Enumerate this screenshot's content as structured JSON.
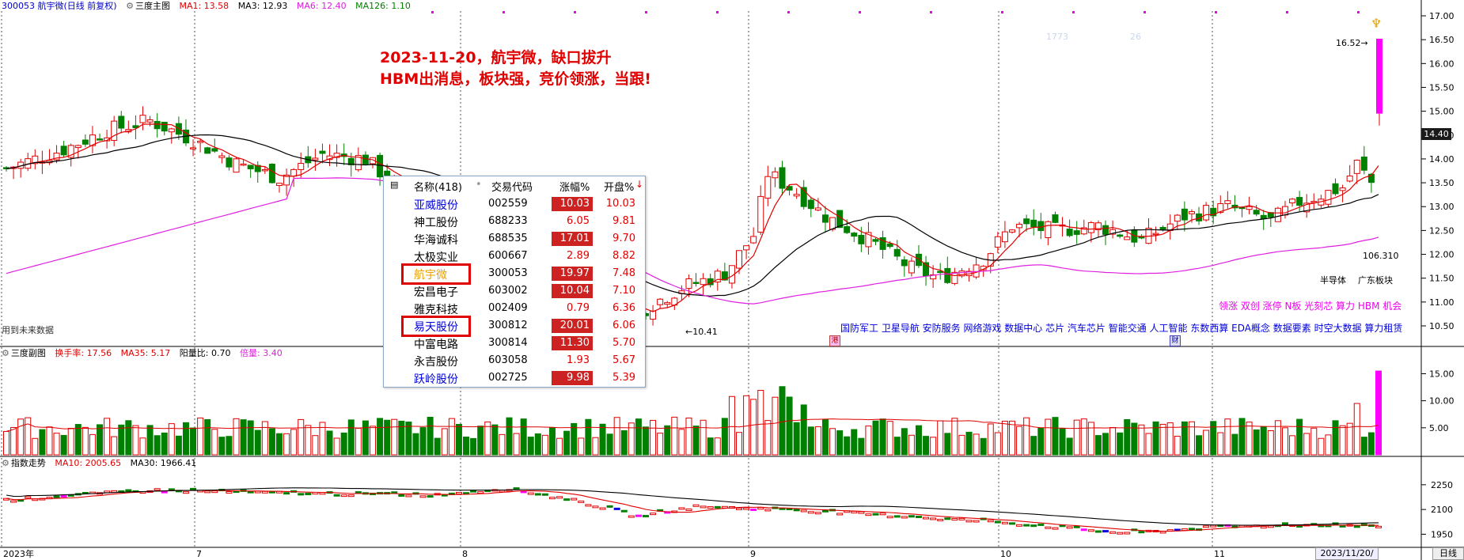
{
  "main_header": {
    "code_name": "300053 航宇微",
    "period_label": "(日线 前复权)",
    "indicator_name": "三度主图",
    "ma1": "MA1: 13.58",
    "ma3": "MA3: 12.93",
    "ma6": "MA6: 12.40",
    "ma126": "MA126: 1.10"
  },
  "sub_header": {
    "name": "三度副图",
    "turnover": "换手率: 17.56",
    "ma35": "MA35: 5.17",
    "yinyang": "阳量比: 0.70",
    "beiliang": "倍量: 3.40"
  },
  "index_header": {
    "name": "指数走势",
    "ma10": "MA10: 2005.65",
    "ma30": "MA30: 1966.41"
  },
  "annotation": {
    "line1": "2023-11-20，航宇微，缺口拔升",
    "line2": "HBM出消息，板块强，竞价领涨，当跟!"
  },
  "labels": {
    "future_data": "用到未来数据",
    "low_price": "10.41",
    "high_price": "16.52",
    "volume_price": "106.310",
    "sector": "半导体",
    "board": "广东板块",
    "faint1": "1773",
    "faint2": "26",
    "concepts_magenta": "领涨 双创 涨停 N板 光刻芯 算力 HBM 机会",
    "concepts_blue": "国防军工 卫星导航 安防服务 网络游戏 数据中心 芯片 汽车芯片 智能交通 人工智能 东数西算 EDA概念 数据要素 时空大数据 算力租赁",
    "period_tab": "日线",
    "current_date": "2023/11/20/一"
  },
  "price_axis": [
    "17.00",
    "16.50",
    "16.00",
    "15.50",
    "15.00",
    "14.50",
    "14.00",
    "13.50",
    "13.00",
    "12.50",
    "12.00",
    "11.50",
    "11.00",
    "10.50"
  ],
  "current_price_tag": "14.40",
  "vol_axis": [
    "15.00",
    "10.00",
    "5.00"
  ],
  "index_axis": [
    "2250",
    "2100",
    "1950"
  ],
  "time_axis": [
    "2023年",
    "7",
    "8",
    "9",
    "10",
    "11"
  ],
  "popup": {
    "headers": {
      "name": "名称(418)",
      "code": "交易代码",
      "pct": "涨幅%",
      "open": "开盘%"
    },
    "rows": [
      {
        "name": "亚威股份",
        "code": "002559",
        "pct": "10.03",
        "open": "10.03"
      },
      {
        "name": "神工股份",
        "code": "688233",
        "pct": "6.05",
        "open": "9.81"
      },
      {
        "name": "华海诚科",
        "code": "688535",
        "pct": "17.01",
        "open": "9.70"
      },
      {
        "name": "太极实业",
        "code": "600667",
        "pct": "2.89",
        "open": "8.82"
      },
      {
        "name": "航宇微",
        "code": "300053",
        "pct": "19.97",
        "open": "7.48"
      },
      {
        "name": "宏昌电子",
        "code": "603002",
        "pct": "10.04",
        "open": "7.10"
      },
      {
        "name": "雅克科技",
        "code": "002409",
        "pct": "0.79",
        "open": "6.36"
      },
      {
        "name": "易天股份",
        "code": "300812",
        "pct": "20.01",
        "open": "6.06"
      },
      {
        "name": "中富电路",
        "code": "300814",
        "pct": "11.30",
        "open": "5.70"
      },
      {
        "name": "永吉股份",
        "code": "603058",
        "pct": "1.93",
        "open": "5.67"
      },
      {
        "name": "跃岭股份",
        "code": "002725",
        "pct": "9.98",
        "open": "5.39"
      }
    ]
  },
  "colors": {
    "up": "#e00000",
    "down": "#008000",
    "ma_black": "#000000",
    "ma_red": "#e00000",
    "ma_magenta": "#e020e0",
    "limit_up_bar": "#ff00ff",
    "highlight": "#cc0000"
  }
}
